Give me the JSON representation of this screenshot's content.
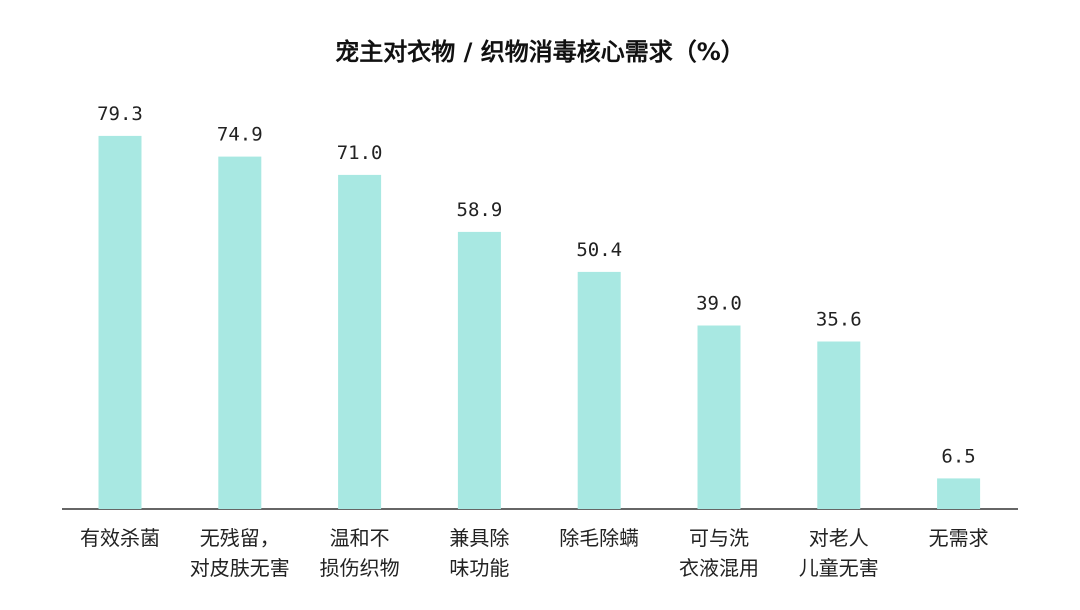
{
  "chart_data": {
    "type": "bar",
    "title": "宠主对衣物 / 织物消毒核心需求（%）",
    "categories": [
      [
        "有效杀菌"
      ],
      [
        "无残留，",
        "对皮肤无害"
      ],
      [
        "温和不",
        "损伤织物"
      ],
      [
        "兼具除",
        "味功能"
      ],
      [
        "除毛除螨"
      ],
      [
        "可与洗",
        "衣液混用"
      ],
      [
        "对老人",
        "儿童无害"
      ],
      [
        "无需求"
      ]
    ],
    "values": [
      79.3,
      74.9,
      71.0,
      58.9,
      50.4,
      39.0,
      35.6,
      6.5
    ],
    "value_labels": [
      "79.3",
      "74.9",
      "71.0",
      "58.9",
      "50.4",
      "39.0",
      "35.6",
      "6.5"
    ],
    "xlabel": "",
    "ylabel": "",
    "ylim": [
      0,
      100
    ],
    "grid": false,
    "legend": "none",
    "colors": {
      "bar": "#a8e8e2",
      "axis": "#333333",
      "text": "#222222"
    }
  }
}
